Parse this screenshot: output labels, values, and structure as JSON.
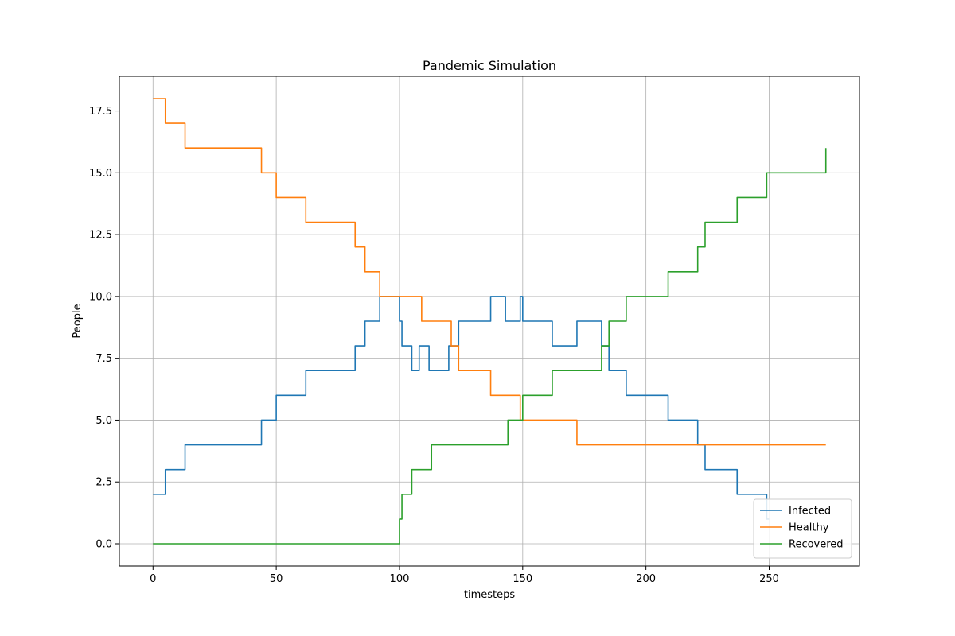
{
  "chart_data": {
    "type": "line",
    "title": "Pandemic Simulation",
    "xlabel": "timesteps",
    "ylabel": "People",
    "xlim": [
      -13.65,
      286.65
    ],
    "ylim": [
      -0.9,
      18.9
    ],
    "xticks": [
      0,
      50,
      100,
      150,
      200,
      250
    ],
    "yticks": [
      0.0,
      2.5,
      5.0,
      7.5,
      10.0,
      12.5,
      15.0,
      17.5
    ],
    "xtick_labels": [
      "0",
      "50",
      "100",
      "150",
      "200",
      "250"
    ],
    "ytick_labels": [
      "0.0",
      "2.5",
      "5.0",
      "7.5",
      "10.0",
      "12.5",
      "15.0",
      "17.5"
    ],
    "grid": true,
    "legend_position": "lower-right",
    "series": [
      {
        "name": "Infected",
        "color": "#1f77b4",
        "steps": [
          [
            0,
            2
          ],
          [
            5,
            3
          ],
          [
            13,
            4
          ],
          [
            44,
            5
          ],
          [
            50,
            6
          ],
          [
            62,
            7
          ],
          [
            82,
            8
          ],
          [
            86,
            9
          ],
          [
            92,
            10
          ],
          [
            100,
            9
          ],
          [
            101,
            8
          ],
          [
            105,
            7
          ],
          [
            108,
            8
          ],
          [
            112,
            7
          ],
          [
            120,
            8
          ],
          [
            124,
            9
          ],
          [
            137,
            10
          ],
          [
            143,
            9
          ],
          [
            149,
            10
          ],
          [
            150,
            9
          ],
          [
            162,
            8
          ],
          [
            172,
            9
          ],
          [
            182,
            8
          ],
          [
            185,
            7
          ],
          [
            192,
            6
          ],
          [
            209,
            5
          ],
          [
            221,
            4
          ],
          [
            224,
            3
          ],
          [
            237,
            2
          ],
          [
            249,
            1
          ]
        ],
        "end_x": 250
      },
      {
        "name": "Healthy",
        "color": "#ff7f0e",
        "steps": [
          [
            0,
            18
          ],
          [
            5,
            17
          ],
          [
            13,
            16
          ],
          [
            44,
            15
          ],
          [
            50,
            14
          ],
          [
            62,
            13
          ],
          [
            82,
            12
          ],
          [
            86,
            11
          ],
          [
            92,
            10
          ],
          [
            109,
            9
          ],
          [
            121,
            8
          ],
          [
            124,
            7
          ],
          [
            137,
            6
          ],
          [
            149,
            5
          ],
          [
            172,
            4
          ]
        ],
        "end_x": 273
      },
      {
        "name": "Recovered",
        "color": "#2ca02c",
        "steps": [
          [
            0,
            0
          ],
          [
            100,
            1
          ],
          [
            101,
            2
          ],
          [
            105,
            3
          ],
          [
            113,
            4
          ],
          [
            144,
            5
          ],
          [
            150,
            6
          ],
          [
            162,
            7
          ],
          [
            182,
            8
          ],
          [
            185,
            9
          ],
          [
            192,
            10
          ],
          [
            209,
            11
          ],
          [
            221,
            12
          ],
          [
            224,
            13
          ],
          [
            237,
            14
          ],
          [
            249,
            15
          ],
          [
            273,
            16
          ]
        ],
        "end_x": 273
      }
    ]
  }
}
